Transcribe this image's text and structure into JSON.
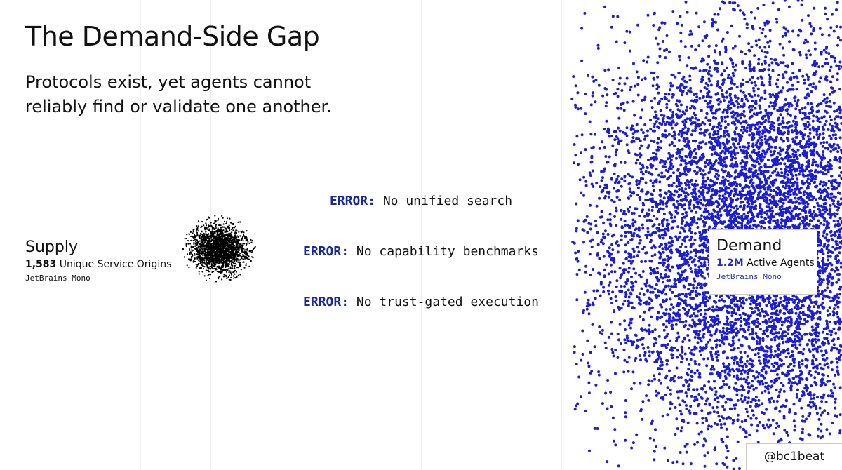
{
  "title": "The Demand-Side Gap",
  "subtitle": [
    "Protocols exist, yet agents cannot",
    "reliably find or validate one another."
  ],
  "supply": {
    "label": "Supply",
    "count": "1,583",
    "count_label": "Unique Service Origins",
    "font_note": "JetBrains Mono"
  },
  "errors": [
    {
      "tag": "ERROR:",
      "text": "No unified search"
    },
    {
      "tag": "ERROR:",
      "text": "No capability benchmarks"
    },
    {
      "tag": "ERROR:",
      "text": "No trust-gated execution"
    }
  ],
  "demand": {
    "label": "Demand",
    "count": "1.2M",
    "count_label": "Active Agents",
    "font_note": "JetBrains Mono"
  },
  "handle": "@bc1beat"
}
